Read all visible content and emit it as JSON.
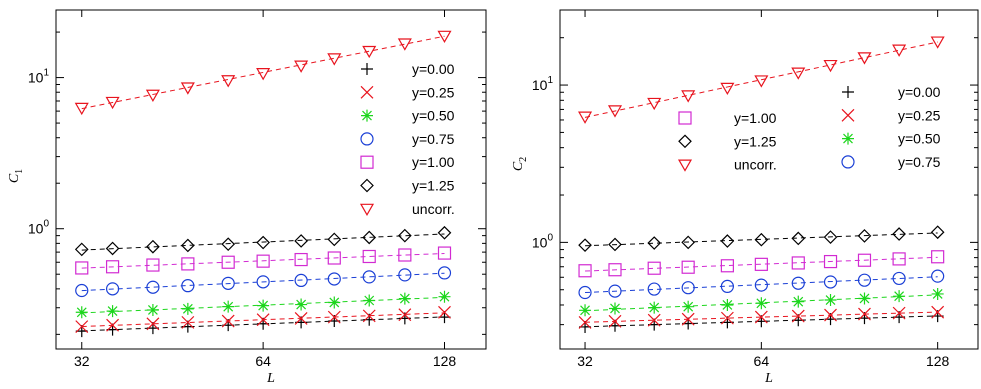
{
  "chart_data": [
    {
      "type": "scatter",
      "title": "",
      "xlabel": "L",
      "ylabel": "C",
      "ylabel_sub": "1",
      "xscale": "log2",
      "yscale": "log",
      "xlim": [
        29,
        150
      ],
      "ylim": [
        0.16,
        28
      ],
      "xticks": [
        32,
        64,
        128
      ],
      "xtick_labels": [
        "32",
        "64",
        "128"
      ],
      "yticks": [
        1,
        10
      ],
      "ytick_labels": [
        [
          "10",
          "0"
        ],
        [
          "10",
          "1"
        ]
      ],
      "grid": false,
      "legend_position": "right",
      "x": [
        32,
        36,
        42,
        48,
        56,
        64,
        74,
        84,
        96,
        110,
        128
      ],
      "series": [
        {
          "name": "y=0.00",
          "marker": "plus",
          "color": "#000000",
          "values": [
            0.21,
            0.215,
            0.22,
            0.225,
            0.23,
            0.235,
            0.24,
            0.245,
            0.25,
            0.255,
            0.26
          ]
        },
        {
          "name": "y=0.25",
          "marker": "x",
          "color": "#e8141e",
          "values": [
            0.225,
            0.23,
            0.235,
            0.24,
            0.245,
            0.25,
            0.255,
            0.26,
            0.265,
            0.27,
            0.28
          ]
        },
        {
          "name": "y=0.50",
          "marker": "star",
          "color": "#1cd61c",
          "values": [
            0.28,
            0.285,
            0.29,
            0.295,
            0.305,
            0.31,
            0.315,
            0.325,
            0.335,
            0.345,
            0.355
          ]
        },
        {
          "name": "y=0.75",
          "marker": "circle",
          "color": "#1a3fd6",
          "values": [
            0.39,
            0.4,
            0.41,
            0.42,
            0.435,
            0.445,
            0.455,
            0.465,
            0.48,
            0.495,
            0.51
          ]
        },
        {
          "name": "y=1.00",
          "marker": "square",
          "color": "#d22ad2",
          "values": [
            0.55,
            0.56,
            0.575,
            0.585,
            0.6,
            0.61,
            0.625,
            0.64,
            0.655,
            0.67,
            0.69
          ]
        },
        {
          "name": "y=1.25",
          "marker": "diamond",
          "color": "#000000",
          "values": [
            0.73,
            0.74,
            0.76,
            0.775,
            0.79,
            0.81,
            0.83,
            0.85,
            0.875,
            0.9,
            0.94
          ]
        },
        {
          "name": "uncorr.",
          "marker": "triangle-down",
          "color": "#e8141e",
          "values": [
            6.3,
            6.9,
            7.7,
            8.6,
            9.6,
            10.7,
            12.0,
            13.4,
            15.0,
            16.8,
            18.9
          ]
        }
      ]
    },
    {
      "type": "scatter",
      "title": "",
      "xlabel": "L",
      "ylabel": "C",
      "ylabel_sub": "2",
      "xscale": "log2",
      "yscale": "log",
      "xlim": [
        29,
        150
      ],
      "ylim": [
        0.21,
        30
      ],
      "xticks": [
        32,
        64,
        128
      ],
      "xtick_labels": [
        "32",
        "64",
        "128"
      ],
      "yticks": [
        1,
        10
      ],
      "ytick_labels": [
        [
          "10",
          "0"
        ],
        [
          "10",
          "1"
        ]
      ],
      "grid": false,
      "legend_position": "right, two columns",
      "x": [
        32,
        36,
        42,
        48,
        56,
        64,
        74,
        84,
        96,
        110,
        128
      ],
      "series": [
        {
          "name": "y=0.00",
          "marker": "plus",
          "color": "#000000",
          "values": [
            0.29,
            0.295,
            0.3,
            0.305,
            0.31,
            0.315,
            0.32,
            0.325,
            0.33,
            0.335,
            0.34
          ]
        },
        {
          "name": "y=0.25",
          "marker": "x",
          "color": "#e8141e",
          "values": [
            0.31,
            0.315,
            0.32,
            0.325,
            0.33,
            0.335,
            0.34,
            0.345,
            0.35,
            0.355,
            0.36
          ]
        },
        {
          "name": "y=0.50",
          "marker": "star",
          "color": "#1cd61c",
          "values": [
            0.37,
            0.38,
            0.385,
            0.39,
            0.4,
            0.41,
            0.42,
            0.43,
            0.44,
            0.455,
            0.47
          ]
        },
        {
          "name": "y=0.75",
          "marker": "circle",
          "color": "#1a3fd6",
          "values": [
            0.48,
            0.49,
            0.505,
            0.515,
            0.525,
            0.535,
            0.55,
            0.56,
            0.575,
            0.59,
            0.61
          ]
        },
        {
          "name": "y=1.00",
          "marker": "square",
          "color": "#d22ad2",
          "values": [
            0.66,
            0.67,
            0.685,
            0.695,
            0.71,
            0.725,
            0.74,
            0.755,
            0.77,
            0.785,
            0.81
          ]
        },
        {
          "name": "y=1.25",
          "marker": "diamond",
          "color": "#000000",
          "values": [
            0.96,
            0.97,
            0.99,
            1.0,
            1.02,
            1.04,
            1.06,
            1.08,
            1.1,
            1.13,
            1.16
          ]
        },
        {
          "name": "uncorr.",
          "marker": "triangle-down",
          "color": "#e8141e",
          "values": [
            6.3,
            6.9,
            7.7,
            8.6,
            9.6,
            10.7,
            12.0,
            13.4,
            15.0,
            16.8,
            18.9
          ]
        }
      ]
    }
  ]
}
